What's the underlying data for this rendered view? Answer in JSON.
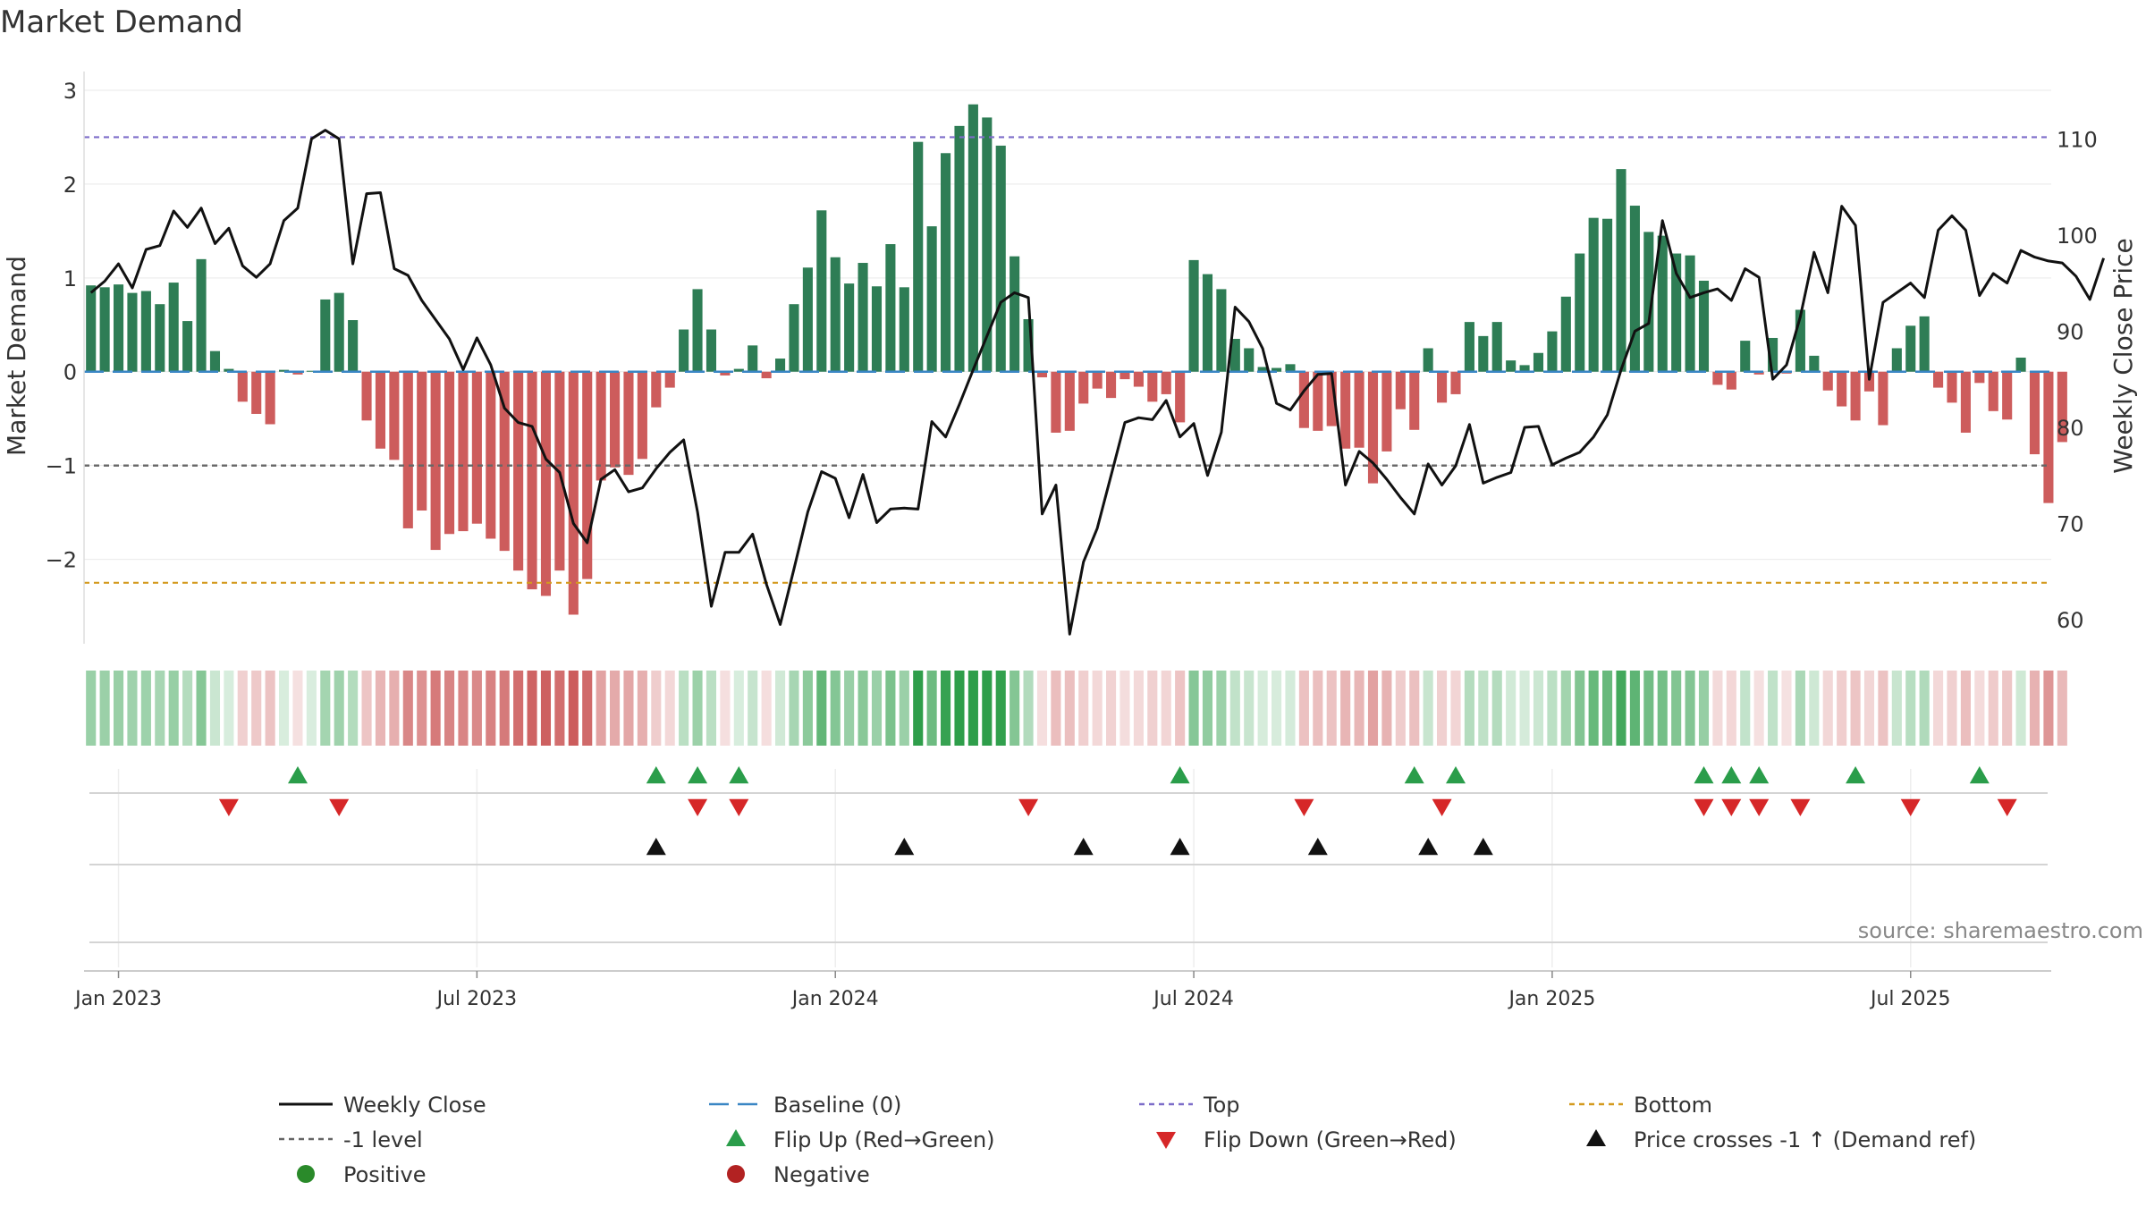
{
  "chart_data": {
    "type": "bar",
    "title": "Market Demand",
    "ylabel": "Market Demand",
    "ylabel_right": "Weekly Close Price",
    "ylim": [
      -2.9,
      3.2
    ],
    "ylim_right": [
      57.5,
      117
    ],
    "yticks": [
      {
        "v": 3,
        "label": "3"
      },
      {
        "v": 2,
        "label": "2"
      },
      {
        "v": 1,
        "label": "1"
      },
      {
        "v": 0,
        "label": "0"
      },
      {
        "v": -1,
        "label": "−1"
      },
      {
        "v": -2,
        "label": "−2"
      }
    ],
    "yticks_right": [
      {
        "v": 110,
        "label": "110"
      },
      {
        "v": 100,
        "label": "100"
      },
      {
        "v": 90,
        "label": "90"
      },
      {
        "v": 80,
        "label": "80"
      },
      {
        "v": 70,
        "label": "70"
      },
      {
        "v": 60,
        "label": "60"
      }
    ],
    "start_date": "2022-12-19",
    "x_range_weeks": [
      -0.5,
      142.2
    ],
    "xticks": [
      {
        "week": 2,
        "label": "Jan 2023"
      },
      {
        "week": 28,
        "label": "Jul 2023"
      },
      {
        "week": 54,
        "label": "Jan 2024"
      },
      {
        "week": 80,
        "label": "Jul 2024"
      },
      {
        "week": 106,
        "label": "Jan 2025"
      },
      {
        "week": 132,
        "label": "Jul 2025"
      }
    ],
    "demand": [
      0.92,
      0.9,
      0.93,
      0.84,
      0.86,
      0.72,
      0.95,
      0.54,
      1.2,
      0.22,
      0.03,
      -0.32,
      -0.45,
      -0.56,
      0.02,
      -0.03,
      0.01,
      0.77,
      0.84,
      0.55,
      -0.52,
      -0.82,
      -0.94,
      -1.67,
      -1.48,
      -1.9,
      -1.73,
      -1.7,
      -1.62,
      -1.78,
      -1.91,
      -2.12,
      -2.32,
      -2.39,
      -2.12,
      -2.59,
      -2.21,
      -1.16,
      -1.02,
      -1.1,
      -0.93,
      -0.38,
      -0.17,
      0.45,
      0.88,
      0.45,
      -0.04,
      0.03,
      0.28,
      -0.07,
      0.14,
      0.72,
      1.11,
      1.72,
      1.22,
      0.94,
      1.16,
      0.91,
      1.36,
      0.9,
      2.45,
      1.55,
      2.33,
      2.62,
      2.85,
      2.71,
      2.41,
      1.23,
      0.56,
      -0.06,
      -0.65,
      -0.63,
      -0.34,
      -0.18,
      -0.28,
      -0.08,
      -0.16,
      -0.32,
      -0.24,
      -0.54,
      1.19,
      1.04,
      0.88,
      0.35,
      0.25,
      0.05,
      0.04,
      0.08,
      -0.6,
      -0.63,
      -0.58,
      -0.82,
      -0.81,
      -1.19,
      -0.85,
      -0.4,
      -0.62,
      0.25,
      -0.33,
      -0.24,
      0.53,
      0.38,
      0.53,
      0.12,
      0.07,
      0.2,
      0.43,
      0.8,
      1.26,
      1.64,
      1.63,
      2.16,
      1.77,
      1.49,
      1.45,
      1.26,
      1.24,
      0.97,
      -0.14,
      -0.19,
      0.33,
      -0.03,
      0.36,
      -0.02,
      0.66,
      0.17,
      -0.2,
      -0.37,
      -0.52,
      -0.21,
      -0.57,
      0.25,
      0.49,
      0.59,
      -0.17,
      -0.33,
      -0.65,
      -0.12,
      -0.42,
      -0.51,
      0.15,
      -0.88,
      -1.4,
      -0.75
    ],
    "price": [
      94.0,
      95.2,
      97.0,
      94.5,
      98.5,
      98.9,
      102.5,
      100.8,
      102.8,
      99.1,
      100.7,
      96.8,
      95.6,
      97.0,
      101.5,
      102.8,
      110.0,
      110.9,
      110.0,
      97.0,
      104.3,
      104.4,
      96.5,
      95.8,
      93.2,
      91.2,
      89.2,
      86.0,
      89.3,
      86.5,
      82.0,
      80.5,
      80.1,
      76.7,
      75.3,
      70.0,
      68.0,
      74.6,
      75.6,
      73.3,
      73.7,
      75.7,
      77.4,
      78.7,
      71.2,
      61.4,
      67.0,
      67.0,
      68.9,
      63.7,
      59.5,
      65.3,
      71.2,
      75.4,
      74.7,
      70.6,
      75.1,
      70.1,
      71.5,
      71.6,
      71.5,
      80.6,
      79.0,
      82.4,
      86.0,
      89.5,
      93.0,
      94.0,
      93.5,
      71.0,
      74.0,
      58.5,
      66.0,
      69.5,
      75.0,
      80.5,
      81.0,
      80.8,
      82.8,
      79.0,
      80.4,
      75.0,
      79.5,
      92.5,
      91.0,
      88.2,
      82.5,
      81.8,
      83.8,
      85.5,
      85.6,
      74.0,
      77.5,
      76.3,
      74.6,
      72.7,
      71.0,
      76.2,
      74.0,
      76.0,
      80.3,
      74.2,
      74.8,
      75.3,
      80.0,
      80.1,
      76.1,
      76.8,
      77.4,
      79.0,
      81.3,
      86.0,
      90.0,
      90.8,
      101.5,
      96.0,
      93.5,
      94.0,
      94.4,
      93.2,
      96.5,
      95.6,
      85.0,
      86.5,
      91.5,
      98.2,
      94.0,
      103.0,
      101.0,
      85.0,
      93.0,
      94.0,
      95.0,
      93.5,
      100.5,
      102.0,
      100.5,
      93.7,
      96.0,
      95.0,
      98.4,
      97.7,
      97.3,
      97.1,
      95.7,
      93.3,
      97.6
    ],
    "heatstrip": {
      "description": "colour-coded demand strip; one cell per week",
      "green_max": "#2e9e4a",
      "red_max": "#cc5c5c"
    },
    "signals": {
      "flip_up_weeks": [
        15,
        41,
        44,
        47,
        79,
        96,
        99,
        117,
        119,
        121,
        128,
        137
      ],
      "flip_down_weeks": [
        10,
        18,
        44,
        47,
        68,
        88,
        98,
        117,
        119,
        121,
        124,
        132,
        139
      ],
      "price_cross_weeks": [
        41,
        59,
        72,
        79,
        89,
        97,
        101
      ]
    },
    "reference_lines": [
      {
        "name": "Top",
        "value": 2.5,
        "color": "#7d6dc9"
      },
      {
        "name": "Bottom",
        "value": -2.25,
        "color": "#d49a1f"
      },
      {
        "name": "-1 level",
        "value": -1,
        "color": "#666666"
      },
      {
        "name": "Baseline (0)",
        "value": 0,
        "color": "#3a86c4"
      }
    ],
    "source": "source: sharemaestro.com",
    "legend": [
      {
        "key": "close",
        "label": "Weekly Close"
      },
      {
        "key": "baseline",
        "label": "Baseline (0)"
      },
      {
        "key": "top",
        "label": "Top"
      },
      {
        "key": "bottom",
        "label": "Bottom"
      },
      {
        "key": "minus1",
        "label": "-1 level"
      },
      {
        "key": "flipup",
        "label": "Flip Up (Red→Green)"
      },
      {
        "key": "flipdown",
        "label": "Flip Down (Green→Red)"
      },
      {
        "key": "cross",
        "label": "Price crosses -1 ↑ (Demand ref)"
      },
      {
        "key": "positive",
        "label": "Positive"
      },
      {
        "key": "negative",
        "label": "Negative"
      }
    ],
    "colors": {
      "positive_bar": "#2e7d55",
      "negative_bar": "#cd5c5c",
      "price_line": "#111111",
      "flip_up": "#2a9d4a",
      "flip_down": "#d62728",
      "cross": "#111111",
      "positive_dot": "#2a8a2a",
      "negative_dot": "#b22222"
    }
  }
}
